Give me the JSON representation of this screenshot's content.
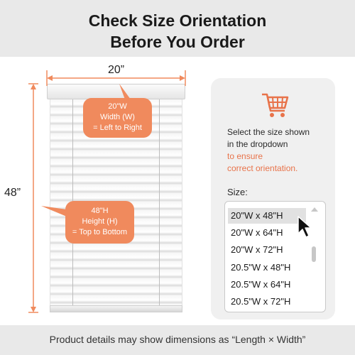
{
  "header": {
    "title_line1": "Check Size Orientation",
    "title_line2": "Before You Order"
  },
  "dimensions": {
    "width": "20”",
    "height": "48”"
  },
  "callouts": {
    "width": {
      "line1": "20\"W",
      "line2": "Width (W)",
      "line3": "= Left to Right"
    },
    "height": {
      "line1": "48\"H",
      "line2": "Height (H)",
      "line3": "= Top to Bottom"
    }
  },
  "panel": {
    "icon": "shopping-cart-icon",
    "line1": "Select the size shown",
    "line2": "in the dropdown",
    "accent1": "to ensure",
    "accent2": "correct orientation.",
    "size_label": "Size:",
    "options": [
      "20\"W x 48\"H",
      "20\"W x 64\"H",
      "20\"W x 72\"H",
      "20.5\"W x 48\"H",
      "20.5\"W x 64\"H",
      "20.5\"W x 72\"H"
    ],
    "selected_index": 0
  },
  "footer": {
    "text": "Product details may show dimensions as “Length × Width”"
  },
  "colors": {
    "accent": "#f08a5d",
    "accent_text": "#e8734a",
    "band": "#e9e9e9",
    "panel": "#f0f0f0"
  }
}
